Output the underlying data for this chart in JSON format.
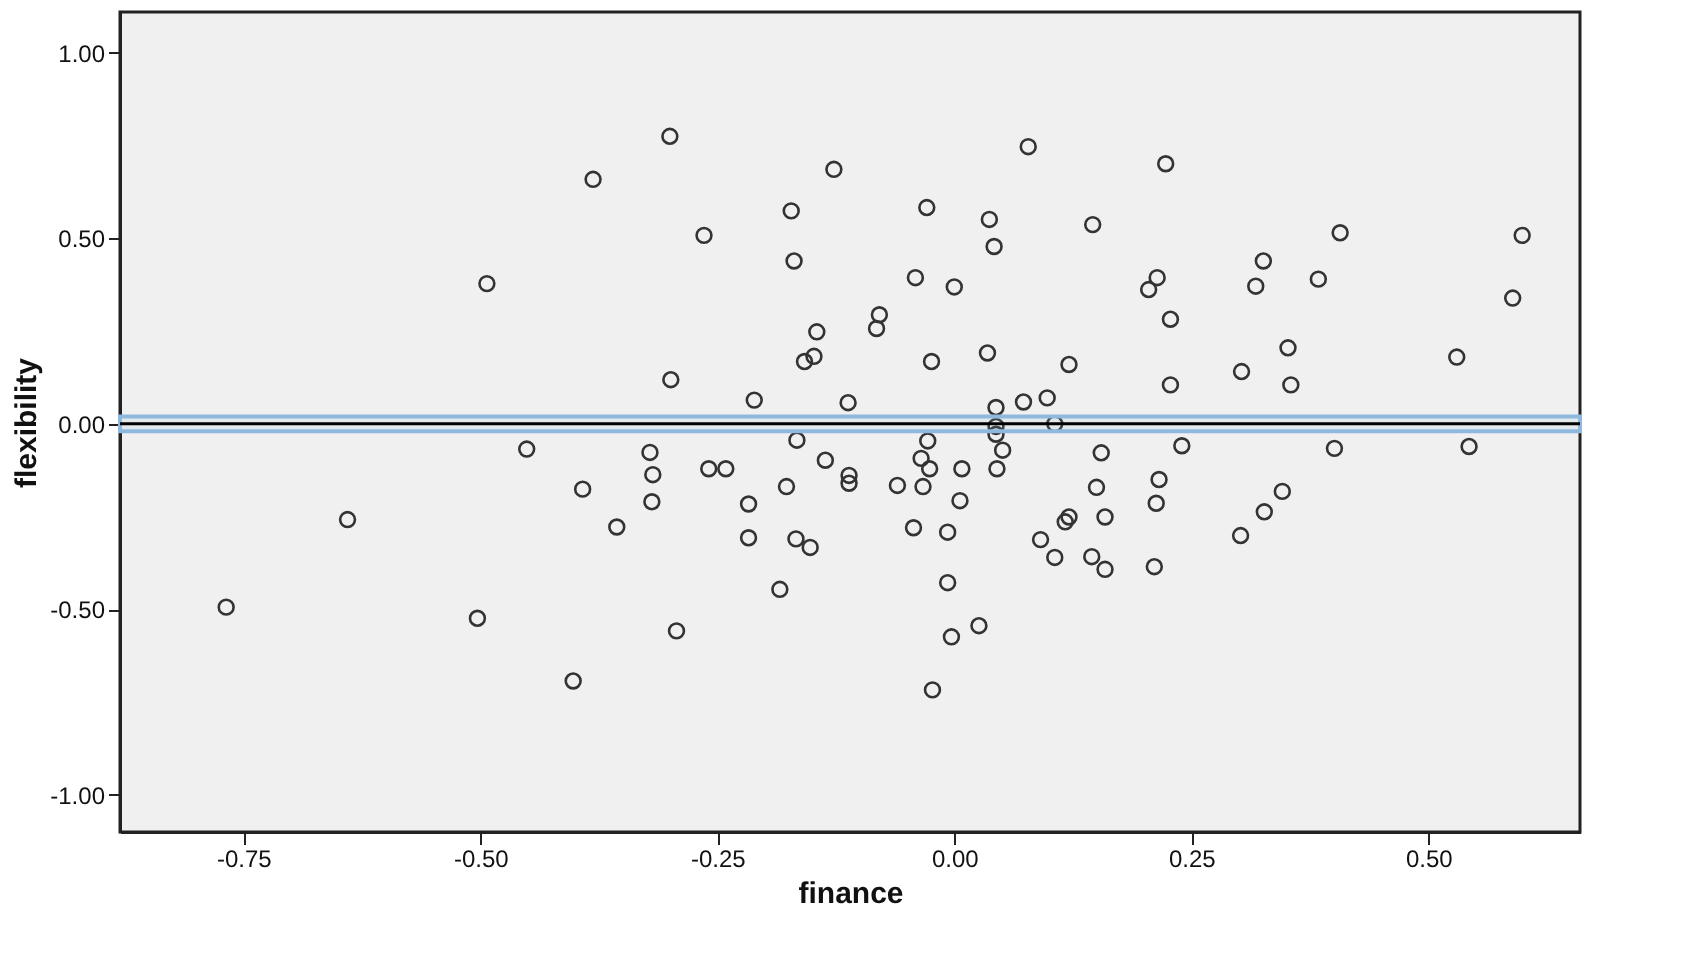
{
  "chart_data": {
    "type": "scatter",
    "xlabel": "finance",
    "ylabel": "flexibility",
    "xlim": [
      -0.88,
      0.66
    ],
    "ylim": [
      -1.1,
      1.11
    ],
    "xticks": [
      {
        "value": -0.75,
        "label": "-0.75"
      },
      {
        "value": -0.5,
        "label": "-0.50"
      },
      {
        "value": -0.25,
        "label": "-0.25"
      },
      {
        "value": 0,
        "label": "0.00"
      },
      {
        "value": 0.25,
        "label": "0.25"
      },
      {
        "value": 0.5,
        "label": "0.50"
      }
    ],
    "yticks": [
      {
        "value": -1,
        "label": "-1.00"
      },
      {
        "value": -0.5,
        "label": "-0.50"
      },
      {
        "value": 0,
        "label": "0.00"
      },
      {
        "value": 0.5,
        "label": "0.50"
      },
      {
        "value": 1,
        "label": "1.00"
      }
    ],
    "grid": false,
    "marker": "circle",
    "ref_lines": [
      {
        "axis": "y",
        "value": 0,
        "color": "#000000"
      }
    ],
    "bands": [
      {
        "axis": "y",
        "from": -0.02,
        "to": 0.02,
        "color": "#8fb8de"
      }
    ],
    "x": [
      -0.381,
      -0.493,
      -0.451,
      -0.392,
      -0.356,
      -0.64,
      -0.768,
      -0.503,
      -0.402,
      -0.3,
      -0.127,
      0.078,
      -0.264,
      -0.172,
      -0.029,
      0.037,
      0.042,
      -0.169,
      -0.041,
      0.0,
      -0.079,
      -0.082,
      -0.145,
      -0.148,
      -0.158,
      -0.024,
      0.035,
      0.121,
      -0.299,
      -0.211,
      -0.112,
      0.044,
      0.073,
      0.098,
      0.106,
      0.044,
      0.044,
      -0.166,
      -0.028,
      0.051,
      -0.321,
      -0.136,
      -0.035,
      -0.318,
      -0.259,
      -0.241,
      -0.111,
      -0.111,
      -0.026,
      0.008,
      0.045,
      -0.177,
      -0.06,
      -0.033,
      -0.319,
      -0.217,
      0.006,
      -0.217,
      -0.167,
      -0.152,
      -0.043,
      -0.007,
      0.091,
      0.106,
      0.121,
      0.117,
      -0.184,
      -0.007,
      -0.293,
      -0.003,
      0.026,
      -0.023,
      0.223,
      0.146,
      0.407,
      0.599,
      0.326,
      0.214,
      0.205,
      0.318,
      0.384,
      0.589,
      0.228,
      0.352,
      0.53,
      0.303,
      0.228,
      0.355,
      0.155,
      0.24,
      0.401,
      0.543,
      0.216,
      0.15,
      0.213,
      0.346,
      0.159,
      0.327,
      0.302,
      0.145,
      0.159,
      0.211
    ],
    "values": [
      0.659,
      0.378,
      -0.068,
      -0.176,
      -0.278,
      -0.258,
      -0.494,
      -0.524,
      -0.693,
      0.775,
      0.686,
      0.747,
      0.508,
      0.574,
      0.583,
      0.551,
      0.478,
      0.439,
      0.394,
      0.369,
      0.294,
      0.257,
      0.248,
      0.182,
      0.168,
      0.168,
      0.191,
      0.16,
      0.119,
      0.064,
      0.057,
      0.044,
      0.059,
      0.07,
      0.0,
      -0.007,
      -0.028,
      -0.044,
      -0.046,
      -0.071,
      -0.077,
      -0.098,
      -0.093,
      -0.137,
      -0.121,
      -0.121,
      -0.139,
      -0.16,
      -0.121,
      -0.121,
      -0.121,
      -0.169,
      -0.166,
      -0.169,
      -0.21,
      -0.216,
      -0.207,
      -0.307,
      -0.31,
      -0.333,
      -0.28,
      -0.292,
      -0.312,
      -0.36,
      -0.251,
      -0.264,
      -0.446,
      -0.428,
      -0.558,
      -0.574,
      -0.544,
      -0.717,
      0.701,
      0.537,
      0.515,
      0.508,
      0.439,
      0.394,
      0.362,
      0.371,
      0.39,
      0.339,
      0.282,
      0.205,
      0.18,
      0.141,
      0.105,
      0.105,
      -0.078,
      -0.059,
      -0.066,
      -0.061,
      -0.15,
      -0.171,
      -0.214,
      -0.182,
      -0.251,
      -0.237,
      -0.301,
      -0.358,
      -0.392,
      -0.385
    ]
  }
}
